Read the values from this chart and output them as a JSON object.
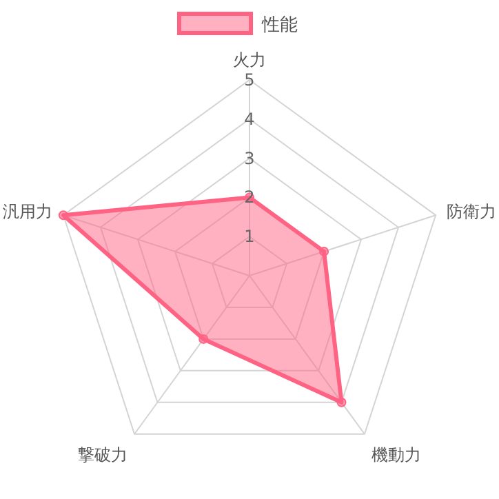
{
  "chart_data": {
    "type": "radar",
    "categories": [
      "火力",
      "防衛力",
      "機動力",
      "撃破力",
      "汎用力"
    ],
    "series": [
      {
        "name": "性能",
        "color": "#ff6384",
        "values": [
          2,
          2,
          4,
          2,
          5
        ]
      }
    ],
    "ylim": [
      0,
      5
    ],
    "yticks": [
      1,
      2,
      3,
      4,
      5
    ],
    "grid": true,
    "legend": "top",
    "marker": "circle"
  }
}
